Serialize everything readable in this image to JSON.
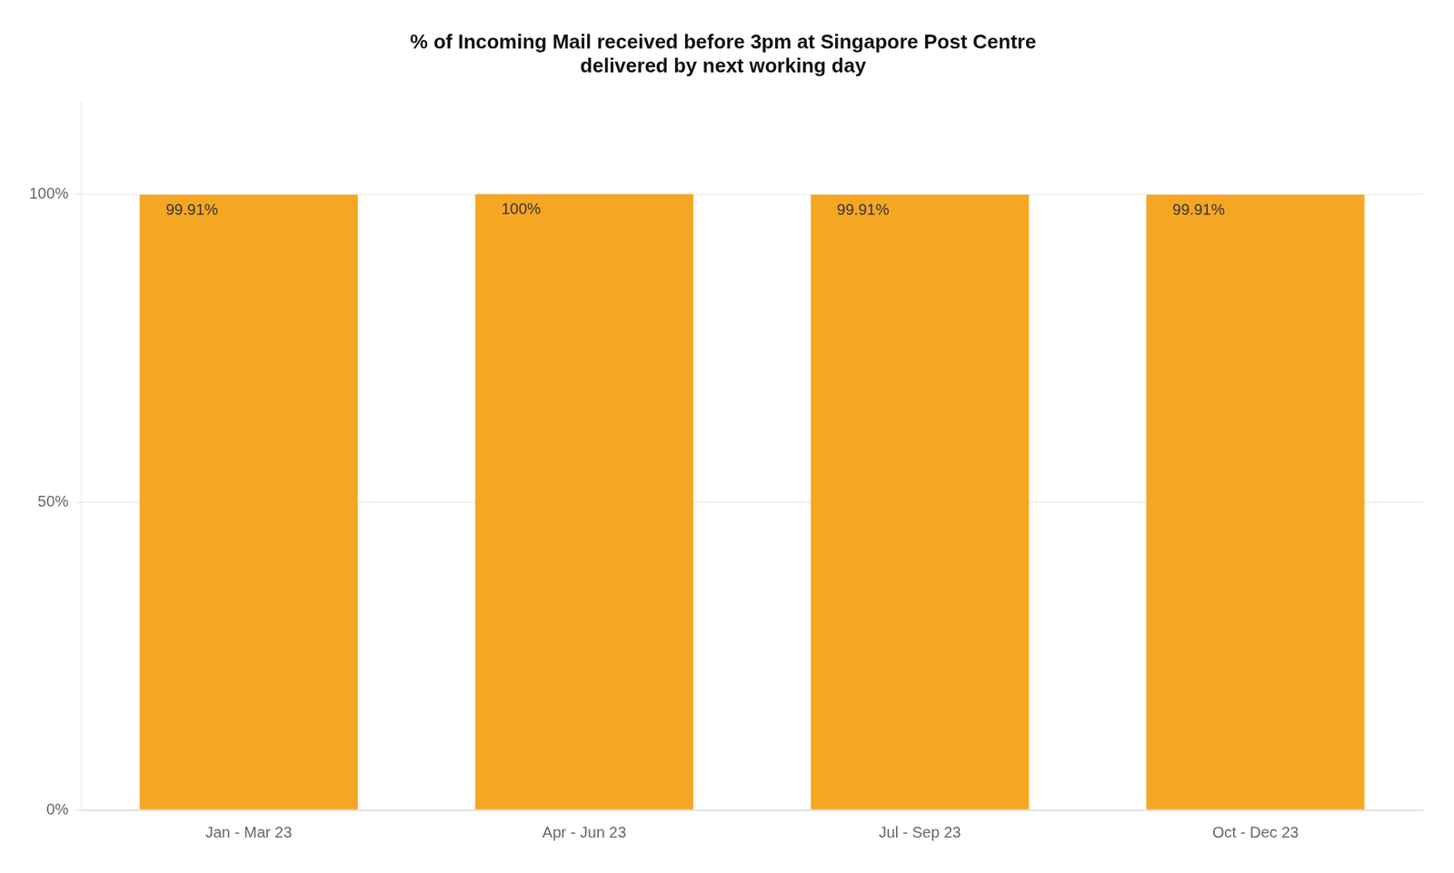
{
  "chart_data": {
    "type": "bar",
    "title": "% of Incoming Mail received before 3pm at Singapore Post Centre\ndelivered by next working day",
    "categories": [
      "Jan - Mar 23",
      "Apr - Jun 23",
      "Jul - Sep 23",
      "Oct - Dec 23"
    ],
    "values": [
      99.91,
      100.0,
      99.91,
      99.91
    ],
    "value_labels": [
      "99.91%",
      "100%",
      "99.91%",
      "99.91%"
    ],
    "data_labels": true,
    "color": "#F5A623",
    "ylim": [
      0,
      115
    ],
    "yticks": [
      {
        "value": 0,
        "label": "0%"
      },
      {
        "value": 50,
        "label": "50%"
      },
      {
        "value": 100,
        "label": "100%"
      }
    ],
    "grid": true
  }
}
